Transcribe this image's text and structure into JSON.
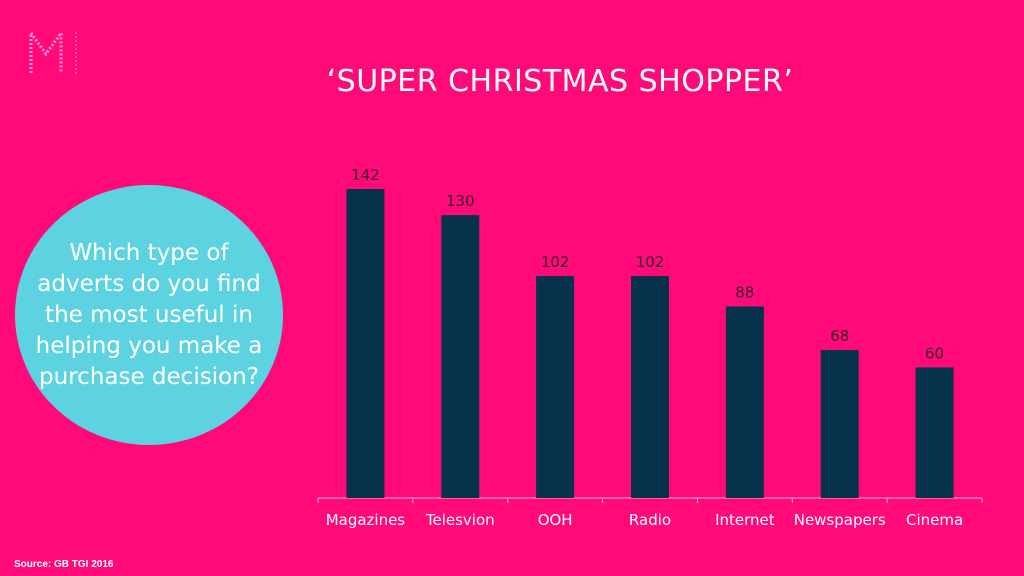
{
  "slide": {
    "title": "‘SUPER CHRISTMAS SHOPPER’",
    "question": "Which type of adverts do you find the most useful in helping you make a purchase decision?",
    "source": "Source: GB TGI 2016",
    "logo_icon": "m-logo-icon"
  },
  "colors": {
    "background": "#FF0A78",
    "bar": "#06334B",
    "bubble": "#5DD3E2",
    "text": "#FFFFFF"
  },
  "chart_data": {
    "type": "bar",
    "categories": [
      "Magazines",
      "Telesvion",
      "OOH",
      "Radio",
      "Internet",
      "Newspapers",
      "Cinema"
    ],
    "values": [
      142,
      130,
      102,
      102,
      88,
      68,
      60
    ],
    "data_labels": [
      "142",
      "130",
      "102",
      "102",
      "88",
      "68",
      "60"
    ],
    "title": "",
    "xlabel": "",
    "ylabel": "",
    "ylim": [
      0,
      142
    ],
    "grid": false,
    "legend": "none"
  }
}
